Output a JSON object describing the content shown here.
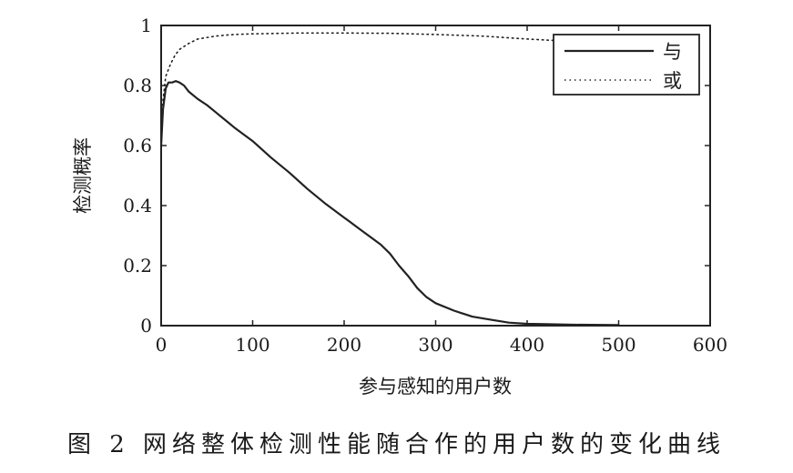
{
  "chart_data": {
    "type": "line",
    "xlabel": "参与感知的用户数",
    "ylabel": "检测概率",
    "xlim": [
      0,
      600
    ],
    "ylim": [
      0,
      1
    ],
    "xticks": [
      0,
      100,
      200,
      300,
      400,
      500,
      600
    ],
    "yticks": [
      0,
      0.2,
      0.4,
      0.6,
      0.8,
      1
    ],
    "xtick_labels": [
      "0",
      "100",
      "200",
      "300",
      "400",
      "500",
      "600"
    ],
    "ytick_labels": [
      "0",
      "0.2",
      "0.4",
      "0.6",
      "0.8",
      "1"
    ],
    "grid": false,
    "legend_position": "top-right",
    "series": [
      {
        "name": "与",
        "style": "solid",
        "x": [
          0,
          2,
          5,
          8,
          12,
          16,
          20,
          25,
          30,
          40,
          50,
          60,
          80,
          100,
          120,
          140,
          160,
          180,
          200,
          220,
          240,
          250,
          260,
          270,
          280,
          290,
          300,
          320,
          340,
          360,
          380,
          400,
          420,
          450,
          500
        ],
        "y": [
          0.6,
          0.72,
          0.79,
          0.81,
          0.81,
          0.815,
          0.81,
          0.8,
          0.78,
          0.755,
          0.735,
          0.71,
          0.66,
          0.615,
          0.56,
          0.51,
          0.455,
          0.405,
          0.36,
          0.315,
          0.27,
          0.24,
          0.2,
          0.165,
          0.125,
          0.095,
          0.075,
          0.05,
          0.03,
          0.02,
          0.01,
          0.006,
          0.005,
          0.003,
          0.002
        ]
      },
      {
        "name": "或",
        "style": "dotted",
        "x": [
          0,
          2,
          5,
          10,
          15,
          20,
          30,
          40,
          60,
          80,
          100,
          150,
          200,
          250,
          300,
          350,
          400,
          430
        ],
        "y": [
          0.6,
          0.75,
          0.83,
          0.87,
          0.9,
          0.92,
          0.94,
          0.955,
          0.965,
          0.97,
          0.972,
          0.975,
          0.975,
          0.974,
          0.97,
          0.965,
          0.955,
          0.95
        ]
      }
    ]
  },
  "caption": "图 2  网络整体检测性能随合作的用户数的变化曲线"
}
